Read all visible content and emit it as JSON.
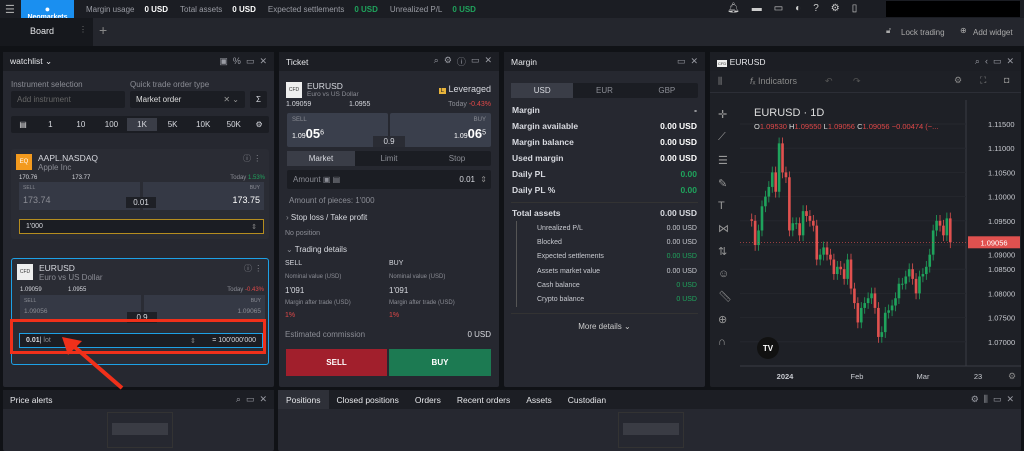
{
  "topbar": {
    "menu_icon": "hamburger-icon",
    "logo": "Neomarkets",
    "stats": [
      {
        "label": "Margin usage",
        "value": "0 USD",
        "color": "#ffffff"
      },
      {
        "label": "Total assets",
        "value": "0 USD",
        "color": "#ffffff"
      },
      {
        "label": "Expected settlements",
        "value": "0 USD",
        "color": "#1fa35c"
      },
      {
        "label": "Unrealized P/L",
        "value": "0 USD",
        "color": "#1fa35c"
      }
    ],
    "icons": [
      "bell-icon",
      "chat-icon",
      "wallet-icon",
      "theme-icon",
      "help-icon",
      "settings-icon",
      "mobile-icon"
    ]
  },
  "board": {
    "tab": "Board",
    "lock": "Lock trading",
    "add_widget": "Add widget"
  },
  "watchlist": {
    "title": "watchlist",
    "instrument_label": "Instrument selection",
    "instrument_placeholder": "Add instrument",
    "order_type_label": "Quick trade order type",
    "order_type": "Market order",
    "quantities": [
      "1",
      "10",
      "100",
      "1K",
      "5K",
      "10K",
      "50K"
    ],
    "selected_quantity": "1K",
    "items": [
      {
        "symbol": "AAPL.NASDAQ",
        "name": "Apple Inc",
        "badge": "EQ",
        "low": "170.76",
        "high": "173.77",
        "today_label": "Today",
        "change": "1.53%",
        "sell_label": "SELL",
        "buy_label": "BUY",
        "sell": "173.74",
        "buy": "173.75",
        "spread": "0.01",
        "amount": "1'000"
      },
      {
        "symbol": "EURUSD",
        "name": "Euro vs US Dollar",
        "badge": "CFD",
        "low": "1.09059",
        "high": "1.0955",
        "today_label": "Today",
        "change": "-0.43%",
        "sell_label": "SELL",
        "buy_label": "BUY",
        "sell": "1.09056",
        "buy": "1.09065",
        "spread": "0.9",
        "amount": "0.01",
        "unit": "lot",
        "equals": "= 100'000'000"
      }
    ]
  },
  "ticket": {
    "title": "Ticket",
    "symbol": "EURUSD",
    "name": "Euro vs US Dollar",
    "badge": "CFD",
    "leveraged": "Leveraged",
    "low": "1.09059",
    "high": "1.0955",
    "today_label": "Today",
    "change": "-0.43%",
    "sell_label": "SELL",
    "buy_label": "BUY",
    "sell_prefix": "1.09",
    "sell_big": "05",
    "sell_sup": "6",
    "buy_prefix": "1.09",
    "buy_big": "06",
    "buy_sup": "5",
    "spread": "0.9",
    "order_tabs": [
      "Market",
      "Limit",
      "Stop"
    ],
    "amount_label": "Amount",
    "amount": "0.01",
    "pieces": "Amount of pieces: 1'000",
    "sl_tp": "Stop loss / Take profit",
    "no_position": "No position",
    "trading_details": "Trading details",
    "sell_col": "SELL",
    "buy_col": "BUY",
    "nominal_label": "Nominal value (USD)",
    "nominal_sell": "1'091",
    "nominal_buy": "1'091",
    "margin_after_label": "Margin after trade (USD)",
    "margin_after_sell": "1%",
    "margin_after_buy": "1%",
    "commission_label": "Estimated commission",
    "commission": "0 USD",
    "sell_button": "SELL",
    "buy_button": "BUY"
  },
  "margin": {
    "title": "Margin",
    "currencies": [
      "USD",
      "EUR",
      "GBP"
    ],
    "selected": "USD",
    "rows": [
      {
        "label": "Margin",
        "value": "-"
      },
      {
        "label": "Margin available",
        "value": "0.00 USD"
      },
      {
        "label": "Margin balance",
        "value": "0.00 USD"
      },
      {
        "label": "Used margin",
        "value": "0.00 USD"
      },
      {
        "label": "Daily PL",
        "value": "0.00",
        "color": "#1fa35c"
      },
      {
        "label": "Daily PL %",
        "value": "0.00",
        "color": "#1fa35c"
      }
    ],
    "total_label": "Total assets",
    "total": "0.00 USD",
    "sub": [
      {
        "label": "Unrealized P/L",
        "value": "0.00 USD"
      },
      {
        "label": "Blocked",
        "value": "0.00 USD"
      },
      {
        "label": "Expected settlements",
        "value": "0.00 USD",
        "color": "#1fa35c"
      },
      {
        "label": "Assets market value",
        "value": "0.00 USD"
      },
      {
        "label": "Cash balance",
        "value": "0 USD",
        "color": "#1fa35c"
      },
      {
        "label": "Crypto balance",
        "value": "0 USD",
        "color": "#1fa35c"
      }
    ],
    "more": "More details"
  },
  "chart_panel": {
    "title": "EURUSD",
    "indicators": "Indicators",
    "legend": {
      "title": "EURUSD · 1D",
      "o": "1.09530",
      "h": "1.09550",
      "l": "1.09056",
      "c": "1.09056",
      "chg": "−0.00474 (−..."
    },
    "last_price": "1.09056"
  },
  "chart_data": {
    "type": "candlestick",
    "title": "EURUSD · 1D",
    "y_ticks": [
      "1.11500",
      "1.11000",
      "1.10500",
      "1.10000",
      "1.09500",
      "1.09000",
      "1.08500",
      "1.08000",
      "1.07500",
      "1.07000"
    ],
    "ylim": [
      1.0665,
      1.1175
    ],
    "x_ticks": [
      "2024",
      "Feb",
      "Mar",
      "23"
    ],
    "up_color": "#1fa35c",
    "down_color": "#e0514f",
    "closes": [
      1.095,
      1.09,
      1.093,
      1.098,
      1.1,
      1.102,
      1.105,
      1.101,
      1.111,
      1.105,
      1.104,
      1.093,
      1.0945,
      1.0945,
      1.092,
      1.097,
      1.096,
      1.095,
      1.094,
      1.087,
      1.088,
      1.0895,
      1.088,
      1.087,
      1.084,
      1.0855,
      1.085,
      1.083,
      1.087,
      1.081,
      1.078,
      1.074,
      1.077,
      1.078,
      1.079,
      1.08,
      1.077,
      1.071,
      1.072,
      1.076,
      1.0765,
      1.0775,
      1.079,
      1.082,
      1.082,
      1.0835,
      1.085,
      1.083,
      1.08,
      1.0835,
      1.084,
      1.0855,
      1.088,
      1.093,
      1.095,
      1.094,
      1.092,
      1.0955,
      1.09056
    ]
  },
  "price_alerts": {
    "title": "Price alerts"
  },
  "positions": {
    "tabs": [
      "Positions",
      "Closed positions",
      "Orders",
      "Recent orders",
      "Assets",
      "Custodian"
    ],
    "active": "Positions"
  }
}
